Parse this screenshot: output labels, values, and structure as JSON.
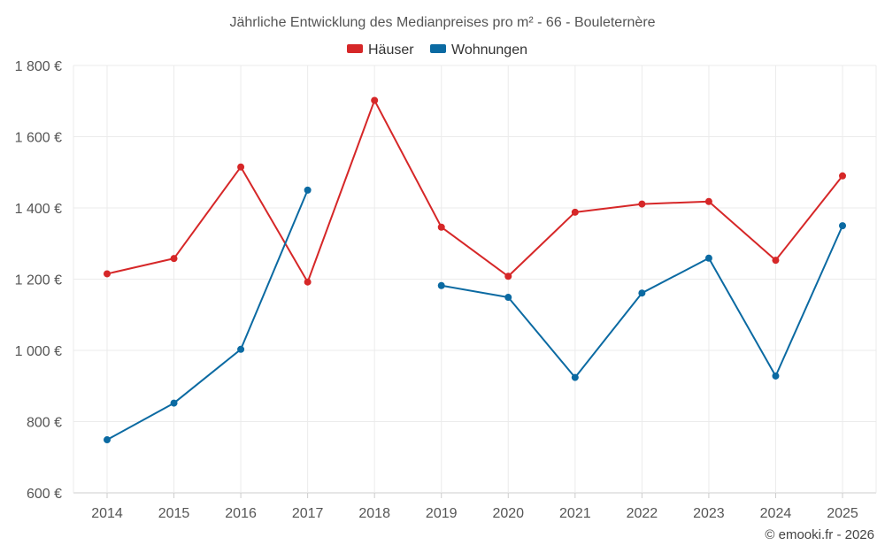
{
  "chart_data": {
    "type": "line",
    "title": "Jährliche Entwicklung des Medianpreises pro m² - 66 - Bouleternère",
    "categories": [
      "2014",
      "2015",
      "2016",
      "2017",
      "2018",
      "2019",
      "2020",
      "2021",
      "2022",
      "2023",
      "2024",
      "2025"
    ],
    "y_tick_labels": [
      "600 €",
      "800 €",
      "1 000 €",
      "1 200 €",
      "1 400 €",
      "1 600 €",
      "1 800 €"
    ],
    "y_ticks": [
      600,
      800,
      1000,
      1200,
      1400,
      1600,
      1800
    ],
    "ylim": [
      600,
      1800
    ],
    "grid": true,
    "legend_position": "top-center",
    "series": [
      {
        "name": "Häuser",
        "color": "#d62728",
        "values": [
          1215,
          1258,
          1515,
          1192,
          1702,
          1346,
          1208,
          1388,
          1411,
          1418,
          1253,
          1490
        ]
      },
      {
        "name": "Wohnungen",
        "color": "#0b6aa2",
        "values": [
          749,
          852,
          1003,
          1450,
          null,
          1182,
          1149,
          924,
          1161,
          1259,
          928,
          1350
        ]
      }
    ]
  },
  "credit": "© emooki.fr - 2026"
}
